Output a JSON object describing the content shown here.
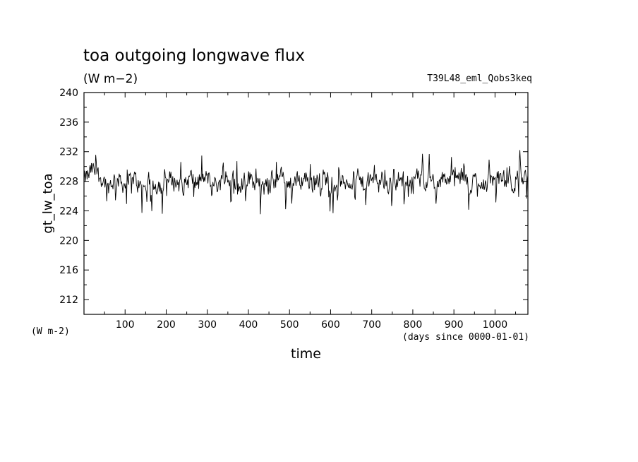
{
  "chart_data": {
    "type": "line",
    "title": "toa outgoing longwave flux",
    "subtitle": "(W m−2)",
    "run_label": "T39L48_eml_Qobs3keq",
    "ylabel": "gt_lw_toa",
    "xlabel": "time",
    "unit_label": "(W m-2)",
    "x_unit_label": "(days since 0000-01-01)",
    "xlim": [
      0,
      1080
    ],
    "ylim": [
      210,
      240
    ],
    "xticks": [
      100,
      200,
      300,
      400,
      500,
      600,
      700,
      800,
      900,
      1000
    ],
    "yticks": [
      212,
      216,
      220,
      224,
      228,
      232,
      236,
      240
    ],
    "series": [
      {
        "x": [
          0,
          20,
          40,
          60,
          80,
          100,
          120,
          140,
          160,
          180,
          200,
          220,
          240,
          260,
          280,
          300,
          320,
          340,
          360,
          380,
          400,
          420,
          440,
          460,
          480,
          500,
          520,
          540,
          560,
          580,
          600,
          620,
          640,
          660,
          680,
          700,
          720,
          740,
          760,
          780,
          800,
          820,
          840,
          860,
          880,
          900,
          920,
          940,
          960,
          980,
          1000,
          1020,
          1040,
          1060,
          1080
        ],
        "values": [
          228,
          229.5,
          228.5,
          227.5,
          228.5,
          227.5,
          228.5,
          227,
          228,
          227.5,
          228.5,
          228,
          227.5,
          228.5,
          227.5,
          228.5,
          227.5,
          228,
          228.5,
          227.5,
          228.5,
          228,
          227,
          228,
          228.5,
          228,
          228,
          228.5,
          227.5,
          228.5,
          228.5,
          227.5,
          228,
          228.5,
          227.5,
          228,
          228.5,
          227.5,
          228.5,
          228,
          229,
          228,
          228.5,
          227.5,
          228.5,
          228,
          228.5,
          227.5,
          228.5,
          227.5,
          228.5,
          228,
          227.5,
          228.5,
          228
        ]
      }
    ],
    "grid": false,
    "legend": "none"
  }
}
